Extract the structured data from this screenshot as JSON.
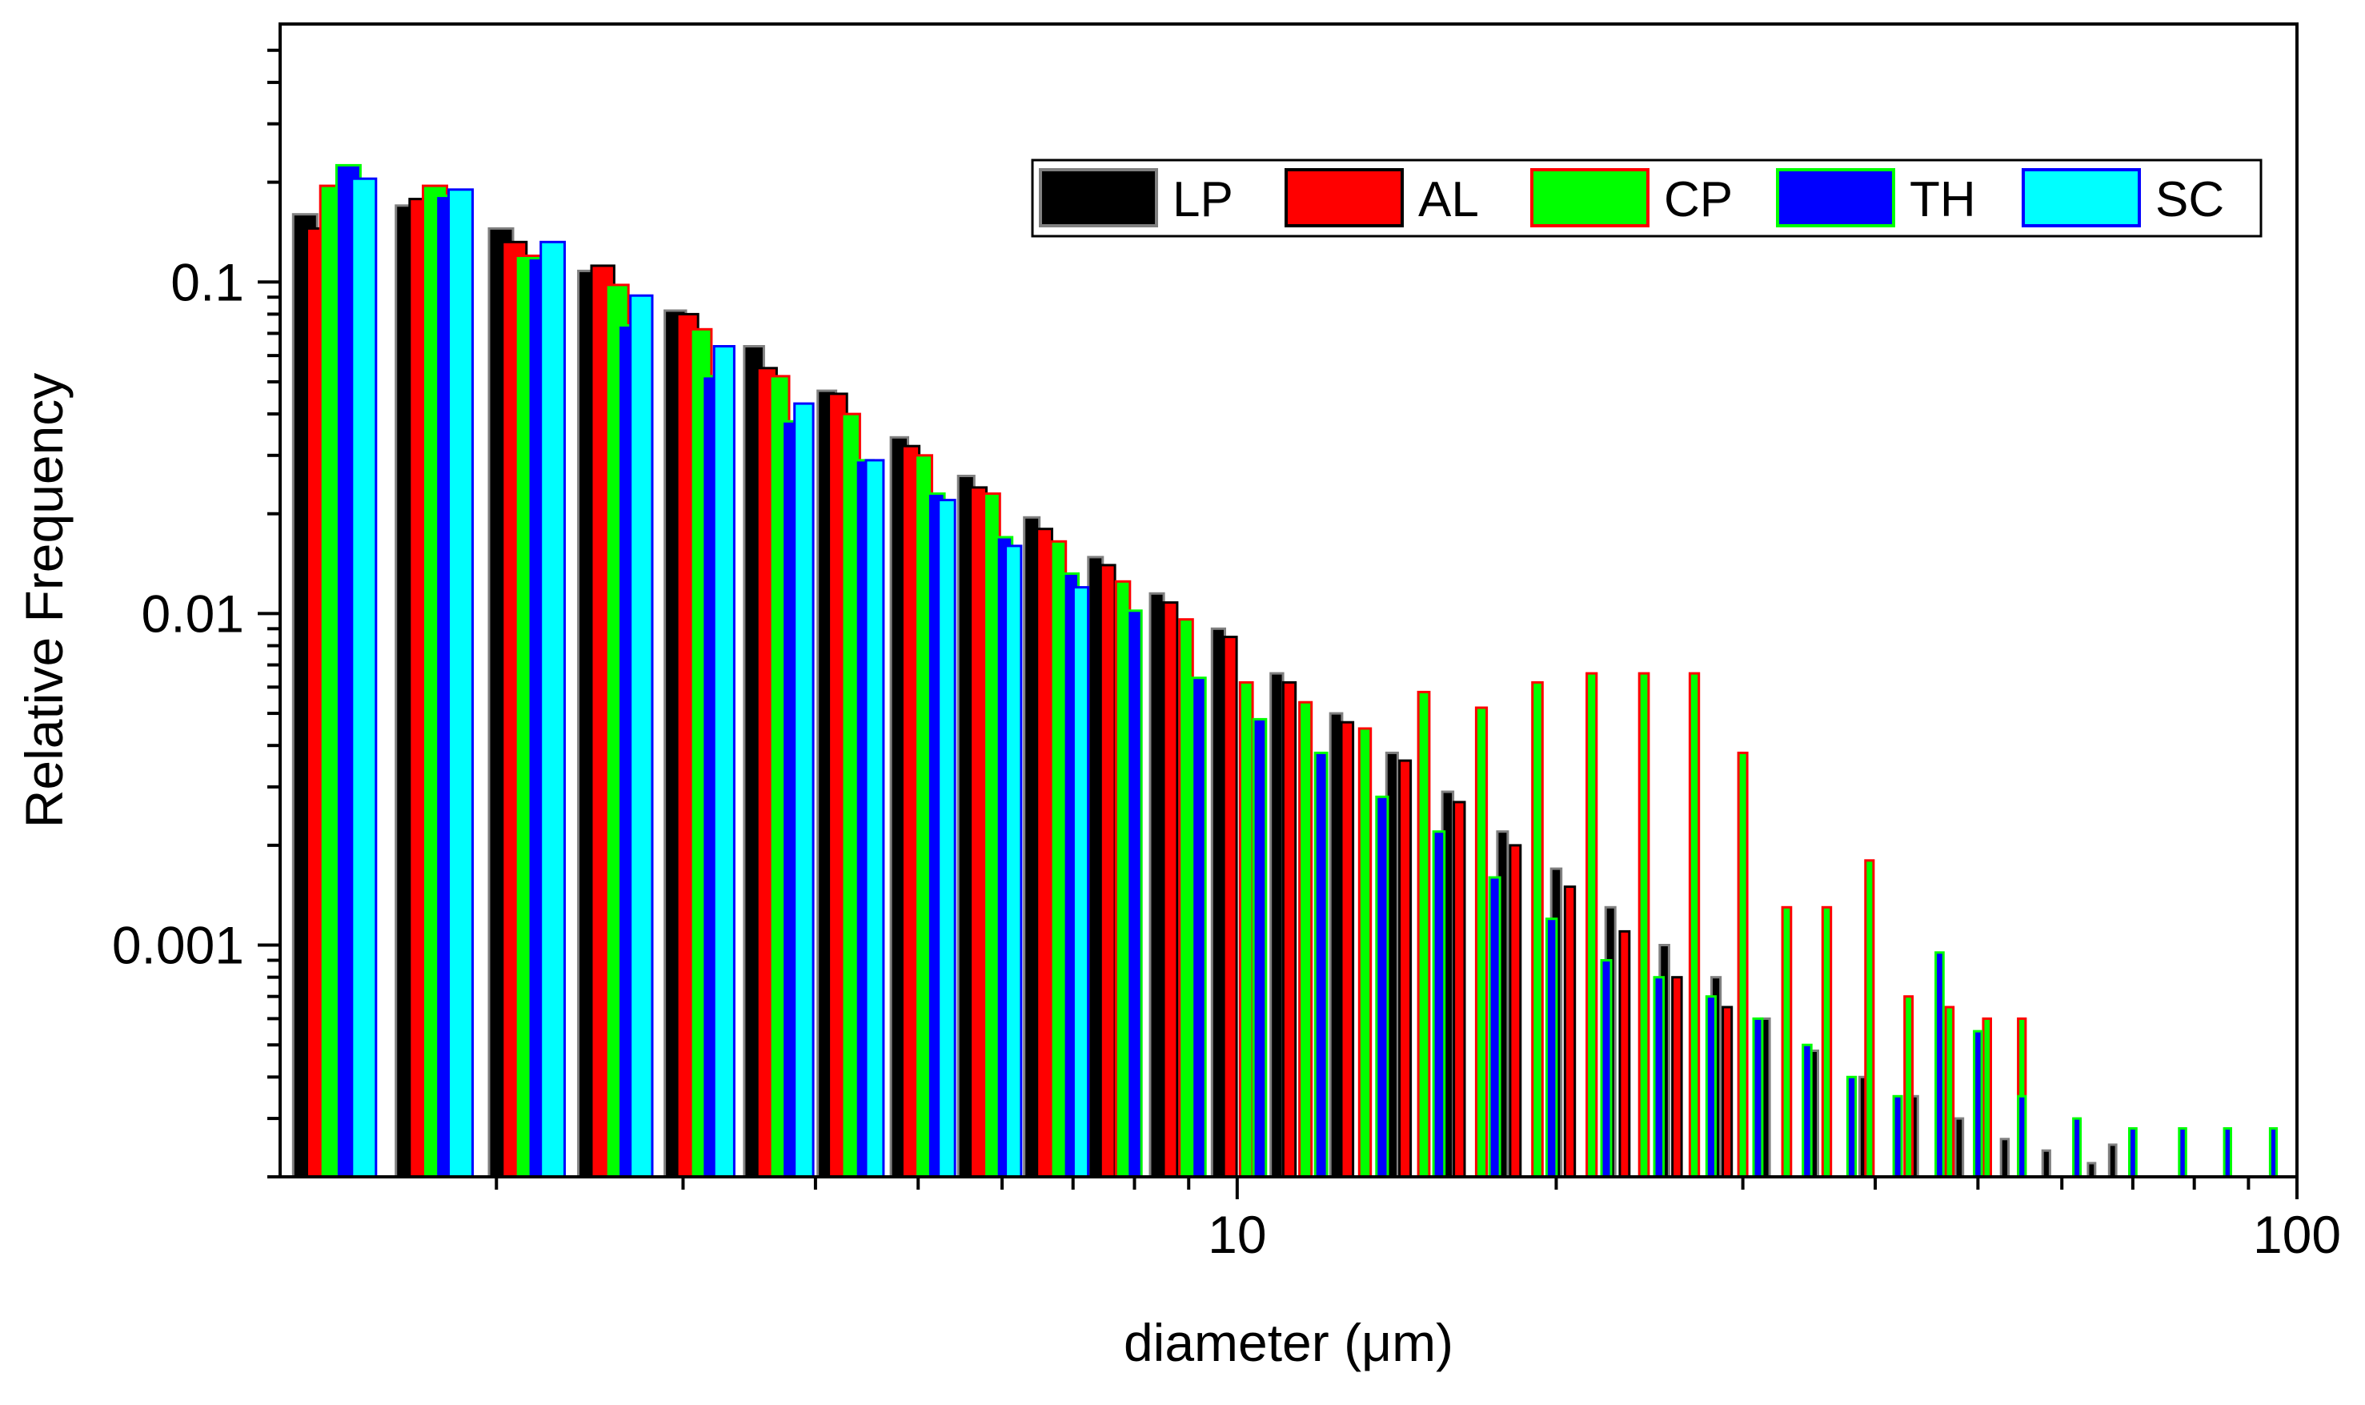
{
  "chart_data": {
    "type": "bar",
    "title": "",
    "xlabel": "diameter (μm)",
    "ylabel": "Relative Frequency",
    "xscale": "log",
    "yscale": "log",
    "xlim": [
      1.25,
      100
    ],
    "ylim": [
      0.0002,
      0.6
    ],
    "x_tick_labels": [
      {
        "value": 10,
        "label": "10"
      },
      {
        "value": 100,
        "label": "100"
      }
    ],
    "y_tick_labels": [
      {
        "value": 0.1,
        "label": "0.1"
      },
      {
        "value": 0.01,
        "label": "0.01"
      },
      {
        "value": 0.001,
        "label": "0.001"
      }
    ],
    "legend_position": "top-right",
    "grid": false,
    "legend": [
      {
        "name": "LP",
        "fill": "#000000",
        "stroke": "#808080"
      },
      {
        "name": "AL",
        "fill": "#ff0000",
        "stroke": "#000000"
      },
      {
        "name": "CP",
        "fill": "#00ff00",
        "stroke": "#ff0000"
      },
      {
        "name": "TH",
        "fill": "#0000ff",
        "stroke": "#00ff00"
      },
      {
        "name": "SC",
        "fill": "#00ffff",
        "stroke": "#0000ff"
      }
    ],
    "series": [
      {
        "name": "LP",
        "x": [
          1.32,
          1.65,
          2.02,
          2.45,
          2.95,
          3.5,
          4.1,
          4.8,
          5.55,
          6.4,
          7.35,
          8.4,
          9.6,
          10.9,
          12.4,
          14.0,
          15.8,
          17.8,
          20.0,
          22.5,
          25.3,
          28.3,
          31.5,
          35.0,
          39.0,
          43.5,
          48.0,
          53.0,
          58.0,
          64.0,
          67.0
        ],
        "values": [
          0.16,
          0.17,
          0.145,
          0.108,
          0.082,
          0.064,
          0.047,
          0.034,
          0.026,
          0.0195,
          0.0148,
          0.0115,
          0.009,
          0.0066,
          0.005,
          0.0038,
          0.0029,
          0.0022,
          0.0017,
          0.0013,
          0.001,
          0.0008,
          0.0006,
          0.00048,
          0.0004,
          0.00035,
          0.0003,
          0.00026,
          0.00024,
          0.00022,
          0.00025
        ]
      },
      {
        "name": "AL",
        "x": [
          1.36,
          1.7,
          2.08,
          2.52,
          3.03,
          3.6,
          4.2,
          4.92,
          5.7,
          6.58,
          7.55,
          8.65,
          9.85,
          11.2,
          12.7,
          14.4,
          16.2,
          18.3,
          20.6,
          23.2,
          26.0,
          29.0
        ],
        "values": [
          0.145,
          0.178,
          0.132,
          0.112,
          0.08,
          0.055,
          0.046,
          0.032,
          0.024,
          0.018,
          0.014,
          0.0108,
          0.0085,
          0.0062,
          0.0047,
          0.0036,
          0.0027,
          0.002,
          0.0015,
          0.0011,
          0.0008,
          0.00065
        ]
      },
      {
        "name": "CP",
        "x": [
          1.4,
          1.75,
          2.14,
          2.6,
          3.12,
          3.7,
          4.32,
          5.06,
          5.87,
          6.78,
          7.8,
          8.95,
          10.2,
          11.6,
          13.2,
          15.0,
          17.0,
          19.2,
          21.6,
          24.2,
          27.0,
          30.0,
          33.0,
          36.0,
          39.5,
          43.0,
          47.0,
          51.0,
          55.0
        ],
        "values": [
          0.195,
          0.195,
          0.12,
          0.098,
          0.072,
          0.052,
          0.04,
          0.03,
          0.023,
          0.0165,
          0.0125,
          0.0096,
          0.0062,
          0.0054,
          0.0045,
          0.0058,
          0.0052,
          0.0062,
          0.0066,
          0.0066,
          0.0066,
          0.0038,
          0.0013,
          0.0013,
          0.0018,
          0.0007,
          0.00065,
          0.0006,
          0.0006
        ]
      },
      {
        "name": "TH",
        "x": [
          1.45,
          1.8,
          2.2,
          2.67,
          3.2,
          3.8,
          4.45,
          5.2,
          6.03,
          6.97,
          8.0,
          9.2,
          10.5,
          12.0,
          13.7,
          15.5,
          17.5,
          19.8,
          22.3,
          25.0,
          28.0,
          31.0,
          34.5,
          38.0,
          42.0,
          46.0,
          50.0,
          55.0,
          62.0,
          70.0,
          78.0,
          86.0,
          95.0
        ],
        "values": [
          0.225,
          0.182,
          0.118,
          0.074,
          0.052,
          0.038,
          0.029,
          0.023,
          0.017,
          0.0132,
          0.0102,
          0.0064,
          0.0048,
          0.0038,
          0.0028,
          0.0022,
          0.0016,
          0.0012,
          0.0009,
          0.0008,
          0.0007,
          0.0006,
          0.0005,
          0.0004,
          0.00035,
          0.00095,
          0.00055,
          0.00035,
          0.0003,
          0.00028,
          0.00028,
          0.00028,
          0.00028
        ]
      },
      {
        "name": "SC",
        "x": [
          1.5,
          1.85,
          2.26,
          2.74,
          3.28,
          3.9,
          4.55,
          5.32,
          6.15,
          7.12
        ],
        "values": [
          0.205,
          0.19,
          0.132,
          0.091,
          0.064,
          0.043,
          0.029,
          0.022,
          0.016,
          0.012
        ]
      }
    ]
  }
}
